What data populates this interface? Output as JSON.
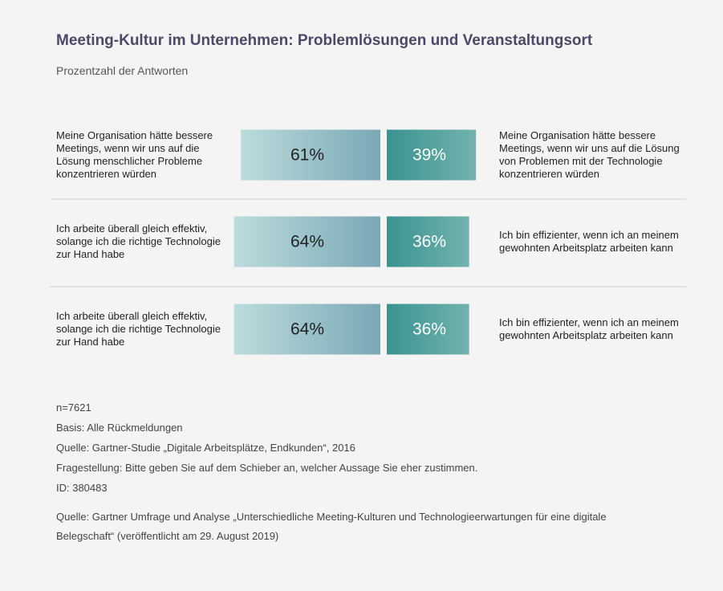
{
  "chart_data": {
    "type": "diverging_bar",
    "title": "Meeting-Kultur im Unternehmen: Problemlösungen und Veranstaltungsort",
    "subtitle": "Prozentzahl der Antworten",
    "left_colors": [
      "#bcdcdc",
      "#79a8b6"
    ],
    "right_colors": [
      "#3a9391",
      "#72b3ae"
    ],
    "rows": [
      {
        "left_label": "Meine Organisation hätte bessere Meetings, wenn wir uns auf die Lösung menschlicher Probleme konzentrieren würden",
        "left_value": 61,
        "left_value_label": "61%",
        "right_label": "Meine Organisation hätte bessere Meetings, wenn wir uns auf die Lösung von Problemen mit der Technologie konzentrieren würden",
        "right_value": 39,
        "right_value_label": "39%"
      },
      {
        "left_label": "Ich arbeite überall gleich effektiv, solange ich die richtige Technologie zur Hand habe",
        "left_value": 64,
        "left_value_label": "64%",
        "right_label": "Ich bin effizienter, wenn ich an meinem gewohnten Arbeitsplatz arbeiten kann",
        "right_value": 36,
        "right_value_label": "36%"
      },
      {
        "left_label": "Ich arbeite überall gleich effektiv, solange ich die richtige Technologie zur Hand habe",
        "left_value": 64,
        "left_value_label": "64%",
        "right_label": "Ich bin effizienter, wenn ich an meinem gewohnten Arbeitsplatz arbeiten kann",
        "right_value": 36,
        "right_value_label": "36%"
      }
    ],
    "footnotes": [
      "n=7621",
      "Basis: Alle Rückmeldungen",
      "Quelle: Gartner-Studie „Digitale Arbeitsplätze, Endkunden“, 2016",
      "Fragestellung: Bitte geben Sie auf dem Schieber an, welcher Aussage Sie eher zustimmen.",
      "ID: 380483"
    ],
    "source": "Quelle: Gartner Umfrage und Analyse „Unterschiedliche Meeting-Kulturen und Technologieerwartungen für eine digitale Belegschaft“ (veröffentlicht am 29. August 2019)"
  }
}
